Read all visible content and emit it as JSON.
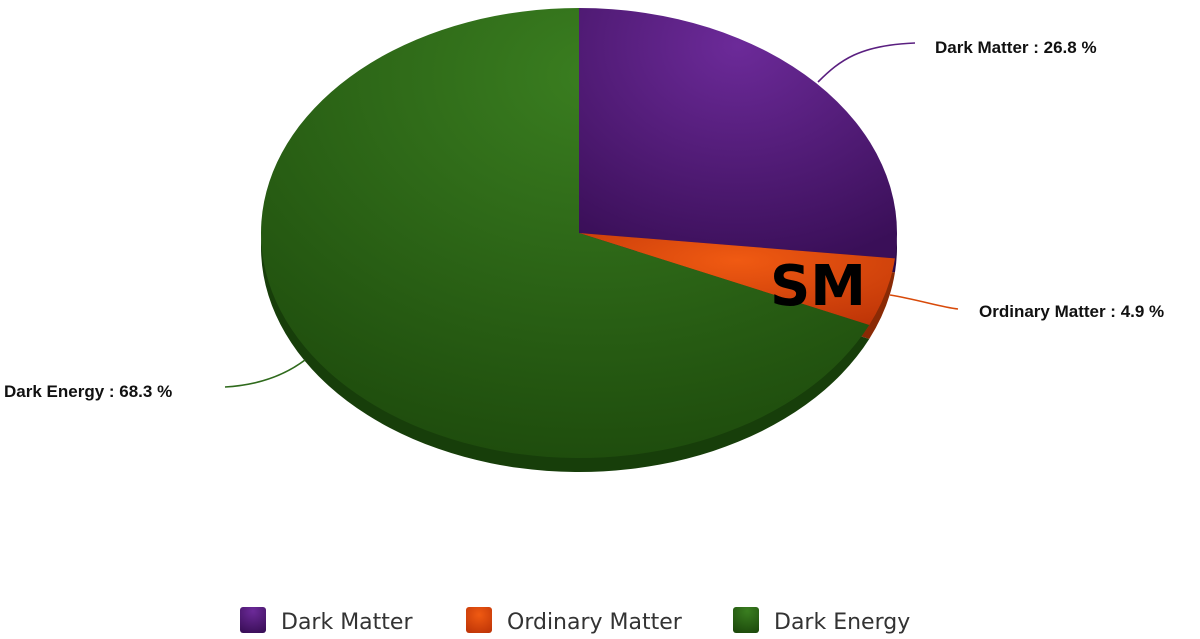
{
  "chart_data": {
    "type": "pie",
    "categories": [
      "Dark Matter",
      "Ordinary Matter",
      "Dark Energy"
    ],
    "values": [
      26.8,
      4.9,
      68.3
    ],
    "unit": "%",
    "slice_labels": [
      "Dark Matter : 26.8 %",
      "Ordinary Matter : 4.9 %",
      "Dark Energy : 68.3 %"
    ],
    "colors": [
      "#5a1f80",
      "#d84a0a",
      "#2f6a1c"
    ],
    "shade_colors": [
      "#2c0a47",
      "#8a2a05",
      "#173e0a"
    ],
    "legend_placement": "bottom",
    "legend": [
      "Dark Matter",
      "Ordinary Matter",
      "Dark Energy"
    ],
    "style": "3d"
  },
  "watermark": "SM"
}
